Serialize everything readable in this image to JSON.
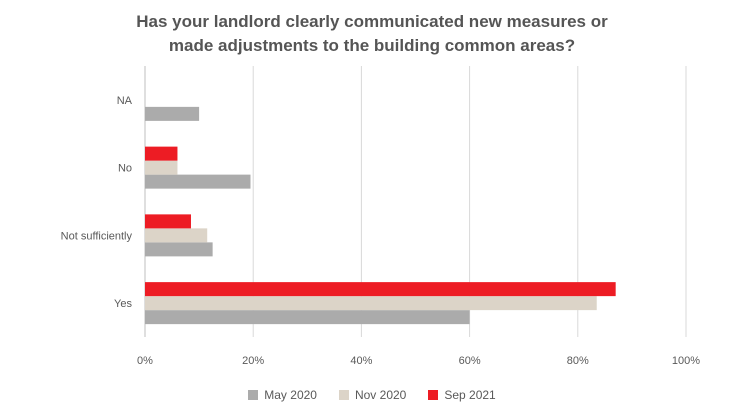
{
  "chart_data": {
    "type": "bar",
    "orientation": "horizontal",
    "title": [
      "Has your landlord clearly communicated new measures or",
      "made adjustments to the building common areas?"
    ],
    "categories": [
      "NA",
      "No",
      "Not sufficiently",
      "Yes"
    ],
    "series": [
      {
        "name": "May 2020",
        "color": "#ababab",
        "values": [
          10,
          19.5,
          12.5,
          60
        ]
      },
      {
        "name": "Nov 2020",
        "color": "#dcd4c8",
        "values": [
          null,
          6,
          11.5,
          83.5
        ]
      },
      {
        "name": "Sep 2021",
        "color": "#ed1c24",
        "values": [
          null,
          6,
          8.5,
          87
        ]
      }
    ],
    "xlim": [
      0,
      100
    ],
    "xticks": [
      "0%",
      "20%",
      "40%",
      "60%",
      "80%",
      "100%"
    ],
    "xlabel": "",
    "ylabel": "",
    "grid": true,
    "legend": "bottom"
  }
}
